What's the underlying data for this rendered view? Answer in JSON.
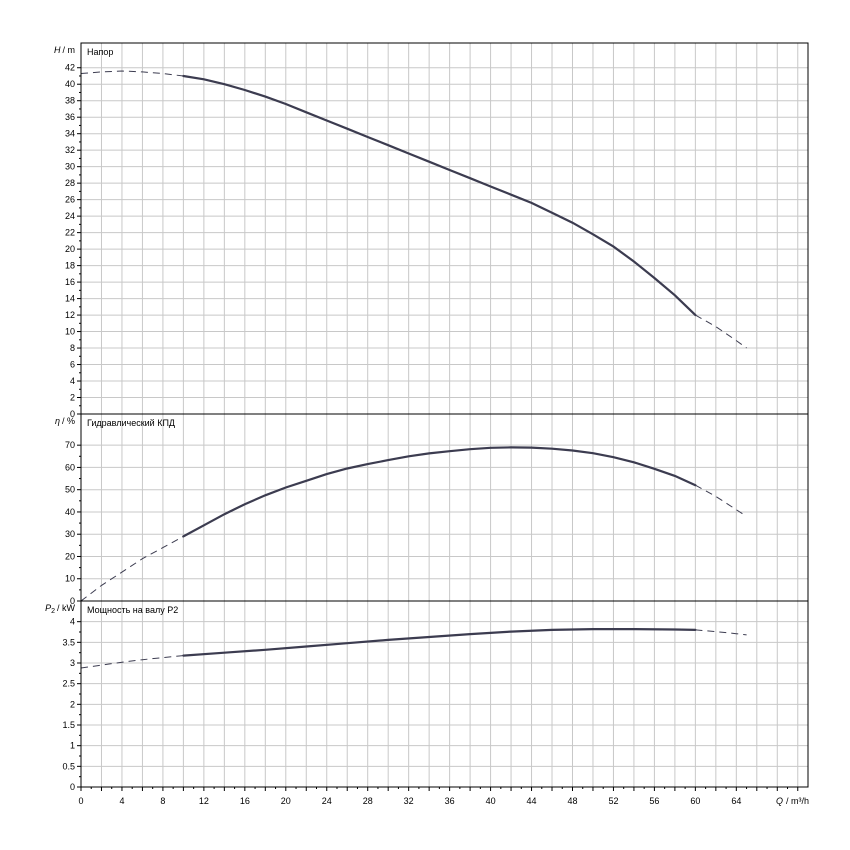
{
  "chart_data": [
    {
      "type": "line",
      "title": "Напор",
      "ylabel_symbol": "H",
      "ylabel_unit": "/ m",
      "xlim": [
        0,
        71
      ],
      "ylim": [
        0,
        45
      ],
      "y_ticks": [
        0,
        2,
        4,
        6,
        8,
        10,
        12,
        14,
        16,
        18,
        20,
        22,
        24,
        26,
        28,
        30,
        32,
        34,
        36,
        38,
        40,
        42
      ],
      "y_tick_labels": [
        "0",
        "2",
        "4",
        "6",
        "8",
        "10",
        "12",
        "14",
        "16",
        "18",
        "20",
        "22",
        "24",
        "26",
        "28",
        "30",
        "32",
        "34",
        "36",
        "38",
        "40",
        "42"
      ],
      "grid": true,
      "series": [
        {
          "style": "dashed",
          "x": [
            0,
            2,
            4,
            6,
            8,
            10
          ],
          "y": [
            41.3,
            41.5,
            41.6,
            41.5,
            41.3,
            41.0
          ]
        },
        {
          "style": "solid",
          "x": [
            10,
            12,
            14,
            16,
            18,
            20,
            22,
            24,
            26,
            28,
            30,
            32,
            34,
            36,
            38,
            40,
            42,
            44,
            46,
            48,
            50,
            52,
            54,
            56,
            58,
            60
          ],
          "y": [
            41.0,
            40.6,
            40.0,
            39.3,
            38.5,
            37.6,
            36.6,
            35.6,
            34.6,
            33.6,
            32.6,
            31.6,
            30.6,
            29.6,
            28.6,
            27.6,
            26.6,
            25.6,
            24.4,
            23.2,
            21.8,
            20.3,
            18.5,
            16.5,
            14.4,
            12.0
          ]
        },
        {
          "style": "dashed",
          "x": [
            60,
            62,
            64,
            65
          ],
          "y": [
            12.0,
            10.6,
            8.9,
            8.0
          ]
        }
      ]
    },
    {
      "type": "line",
      "title": "Гидравлический КПД",
      "ylabel_symbol": "η",
      "ylabel_unit": "/ %",
      "xlim": [
        0,
        71
      ],
      "ylim": [
        0,
        84
      ],
      "y_ticks": [
        0,
        10,
        20,
        30,
        40,
        50,
        60,
        70
      ],
      "y_tick_labels": [
        "0",
        "10",
        "20",
        "30",
        "40",
        "50",
        "60",
        "70"
      ],
      "grid": true,
      "series": [
        {
          "style": "dashed",
          "x": [
            0,
            2,
            4,
            6,
            8,
            10
          ],
          "y": [
            0,
            7,
            13,
            19,
            24,
            29
          ]
        },
        {
          "style": "solid",
          "x": [
            10,
            12,
            14,
            16,
            18,
            20,
            22,
            24,
            26,
            28,
            30,
            32,
            34,
            36,
            38,
            40,
            42,
            44,
            46,
            48,
            50,
            52,
            54,
            56,
            58,
            60
          ],
          "y": [
            29,
            34,
            39,
            43.5,
            47.5,
            51,
            54,
            57,
            59.5,
            61.5,
            63.3,
            65,
            66.3,
            67.3,
            68.2,
            68.8,
            69,
            68.9,
            68.4,
            67.6,
            66.4,
            64.6,
            62.3,
            59.4,
            56.2,
            52
          ]
        },
        {
          "style": "dashed",
          "x": [
            60,
            62,
            64,
            65
          ],
          "y": [
            52,
            47,
            41,
            38
          ]
        }
      ]
    },
    {
      "type": "line",
      "title": "Мощность на валу P2",
      "ylabel_symbol": "P",
      "ylabel_sub": "2",
      "ylabel_unit": "/ kW",
      "xlim": [
        0,
        71
      ],
      "ylim": [
        0,
        4.5
      ],
      "y_ticks": [
        0,
        0.5,
        1,
        1.5,
        2,
        2.5,
        3,
        3.5,
        4
      ],
      "y_tick_labels": [
        "0",
        "0.5",
        "1",
        "1.5",
        "2",
        "2.5",
        "3",
        "3.5",
        "4"
      ],
      "grid": true,
      "series": [
        {
          "style": "dashed",
          "x": [
            0,
            2,
            4,
            6,
            8,
            10
          ],
          "y": [
            2.88,
            2.95,
            3.02,
            3.08,
            3.13,
            3.18
          ]
        },
        {
          "style": "solid",
          "x": [
            10,
            14,
            18,
            22,
            26,
            30,
            34,
            38,
            42,
            46,
            50,
            54,
            58,
            60
          ],
          "y": [
            3.18,
            3.25,
            3.32,
            3.4,
            3.48,
            3.56,
            3.63,
            3.7,
            3.76,
            3.8,
            3.82,
            3.82,
            3.81,
            3.8
          ]
        },
        {
          "style": "dashed",
          "x": [
            60,
            62,
            64,
            65
          ],
          "y": [
            3.8,
            3.76,
            3.71,
            3.68
          ]
        }
      ]
    }
  ],
  "x_axis": {
    "symbol": "Q",
    "unit": "/ m³/h",
    "ticks": [
      0,
      4,
      8,
      12,
      16,
      20,
      24,
      28,
      32,
      36,
      40,
      44,
      48,
      52,
      56,
      60,
      64
    ],
    "tick_labels": [
      "0",
      "4",
      "8",
      "12",
      "16",
      "20",
      "24",
      "28",
      "32",
      "36",
      "40",
      "44",
      "48",
      "52",
      "56",
      "60",
      "64"
    ],
    "grid_step": 2
  },
  "colors": {
    "curve": "#3c3c50",
    "grid": "#c8c8c8",
    "frame": "#000000"
  }
}
